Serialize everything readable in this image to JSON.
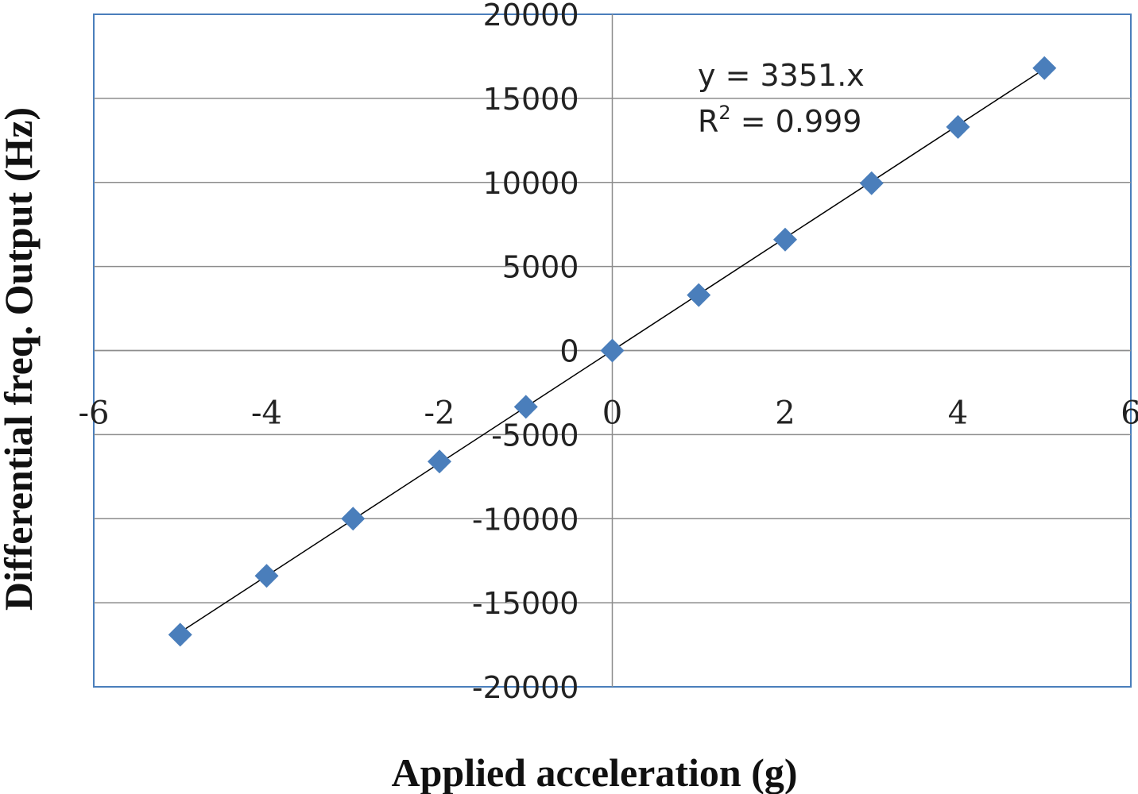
{
  "chart_data": {
    "type": "scatter",
    "xlabel": "Applied acceleration (g)",
    "ylabel": "Differential  freq. Output  (Hz)",
    "xlim": [
      -6,
      6
    ],
    "ylim": [
      -20000,
      20000
    ],
    "x_ticks": [
      "-6",
      "-4",
      "-2",
      "0",
      "2",
      "4",
      "6"
    ],
    "y_ticks": [
      "20000",
      "15000",
      "10000",
      "5000",
      "0",
      "-5000",
      "-10000",
      "-15000",
      "-20000"
    ],
    "grid": "horizontal",
    "marker": "diamond",
    "marker_color": "#4a7ebb",
    "series": [
      {
        "x": [
          -5,
          -4,
          -3,
          -2,
          -1,
          0,
          1,
          2,
          3,
          4,
          5
        ],
        "y": [
          -16900,
          -13400,
          -10000,
          -6600,
          -3350,
          0,
          3300,
          6600,
          9950,
          13300,
          16800
        ]
      }
    ],
    "trendline": {
      "slope": 3351,
      "intercept": 0,
      "x_range": [
        -5,
        5
      ],
      "color": "#000000"
    },
    "annotation": {
      "equation": "y = 3351.x",
      "r2_label": "R",
      "r2_sup": "2",
      "r2_value": " = 0.999"
    }
  }
}
